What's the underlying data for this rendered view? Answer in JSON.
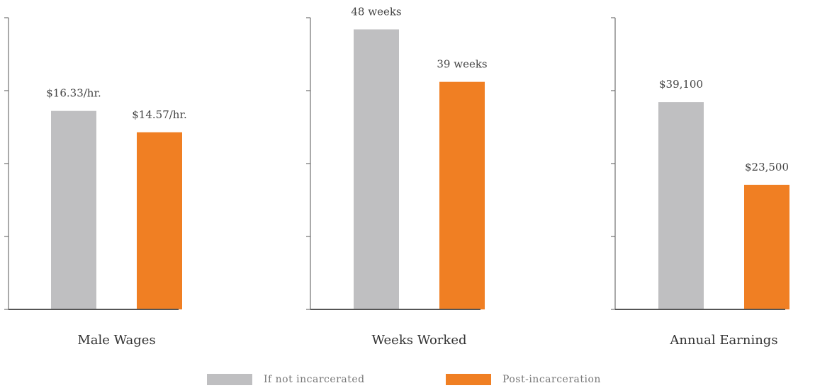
{
  "colors": {
    "if_not_incarcerated": "#bfbfc1",
    "post_incarceration": "#f07f23",
    "axis": "#555555",
    "text": "#333333"
  },
  "legend": {
    "if_not_incarcerated": "If not incarcerated",
    "post_incarceration": "Post-incarceration"
  },
  "chart_data": [
    {
      "type": "bar",
      "title": "Male Wages",
      "categories": [
        "If not incarcerated",
        "Post-incarceration"
      ],
      "values": [
        16.33,
        14.57
      ],
      "value_labels": [
        "$16.33/hr.",
        "$14.57/hr."
      ],
      "ylim": [
        0,
        24
      ],
      "grid": false,
      "legend_position": "bottom"
    },
    {
      "type": "bar",
      "title": "Weeks Worked",
      "categories": [
        "If not incarcerated",
        "Post-incarceration"
      ],
      "values": [
        48,
        39
      ],
      "value_labels": [
        "48 weeks",
        "39 weeks"
      ],
      "ylim": [
        0,
        50
      ],
      "grid": false,
      "legend_position": "bottom"
    },
    {
      "type": "bar",
      "title": "Annual Earnings",
      "categories": [
        "If not incarcerated",
        "Post-incarceration"
      ],
      "values": [
        39100,
        23500
      ],
      "value_labels": [
        "$39,100",
        "$23,500"
      ],
      "ylim": [
        0,
        55000
      ],
      "grid": false,
      "legend_position": "bottom"
    }
  ]
}
